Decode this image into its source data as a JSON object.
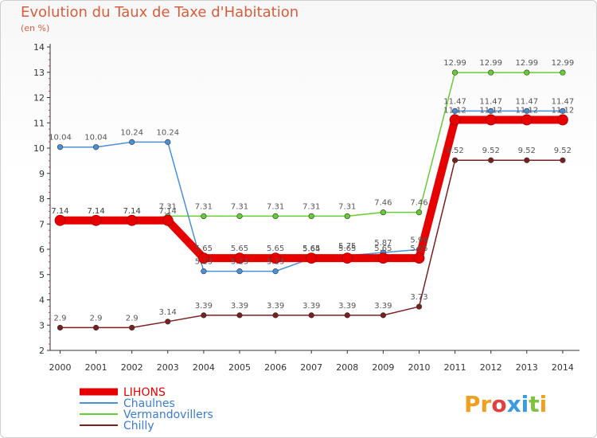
{
  "chart_data": {
    "type": "line",
    "title": "Evolution du Taux de Taxe d'Habitation",
    "subtitle": "(en %)",
    "x": [
      2000,
      2001,
      2002,
      2003,
      2004,
      2005,
      2006,
      2007,
      2008,
      2009,
      2010,
      2011,
      2012,
      2013,
      2014
    ],
    "ylim": [
      2,
      14
    ],
    "yticks": [
      2,
      3,
      4,
      5,
      6,
      7,
      8,
      9,
      10,
      11,
      12,
      13,
      14
    ],
    "grid": false,
    "legend_position": "bottom-left",
    "series": [
      {
        "name": "LIHONS",
        "color": "#e60000",
        "values": [
          7.14,
          7.14,
          7.14,
          7.14,
          5.65,
          5.65,
          5.65,
          5.65,
          5.65,
          5.65,
          5.65,
          11.12,
          11.12,
          11.12,
          11.12
        ]
      },
      {
        "name": "Chaulnes",
        "color": "#4a90d9",
        "values": [
          10.04,
          10.04,
          10.24,
          10.24,
          5.13,
          5.13,
          5.13,
          5.64,
          5.75,
          5.87,
          5.99,
          11.47,
          11.47,
          11.47,
          11.47
        ]
      },
      {
        "name": "Vermandovillers",
        "color": "#66cc33",
        "values": [
          7.14,
          7.14,
          7.14,
          7.31,
          7.31,
          7.31,
          7.31,
          7.31,
          7.31,
          7.46,
          7.46,
          12.99,
          12.99,
          12.99,
          12.99
        ]
      },
      {
        "name": "Chilly",
        "color": "#7a1f1f",
        "values": [
          2.9,
          2.9,
          2.9,
          3.14,
          3.39,
          3.39,
          3.39,
          3.39,
          3.39,
          3.39,
          3.73,
          9.52,
          9.52,
          9.52,
          9.52
        ]
      }
    ],
    "data_labels": {
      "LIHONS": [
        "7.14",
        "7.14",
        "7.14",
        "7.14",
        "5.65",
        "5.65",
        "5.65",
        "5.65",
        "5.65",
        "5.65",
        "5.65",
        "11.12",
        "11.12",
        "11.12",
        "11.12"
      ],
      "Chaulnes": [
        "10.04",
        "10.04",
        "10.24",
        "10.24",
        "5.13",
        "5.13",
        "5.13",
        "5.64",
        "5.75",
        "5.87",
        "5.99",
        "11.47",
        "11.47",
        "11.47",
        "11.47"
      ],
      "Vermandovillers": [
        "7.14",
        "7.14",
        "7.14",
        "7.31",
        "7.31",
        "7.31",
        "7.31",
        "7.31",
        "7.31",
        "7.46",
        "7.46",
        "12.99",
        "12.99",
        "12.99",
        "12.99"
      ],
      "Chilly": [
        "2.9",
        "2.9",
        "2.9",
        "3.14",
        "3.39",
        "3.39",
        "3.39",
        "3.39",
        "3.39",
        "3.39",
        "3.73",
        "9.52",
        "9.52",
        "9.52",
        "9.52"
      ]
    }
  },
  "brand": {
    "text": "Proxiti",
    "letters": [
      "P",
      "r",
      "o",
      "x",
      "i",
      "t",
      "i"
    ],
    "colors": [
      "#f0a020",
      "#f0a020",
      "#e04040",
      "#3a9be0",
      "#3a9be0",
      "#80c040",
      "#f0a020"
    ]
  }
}
